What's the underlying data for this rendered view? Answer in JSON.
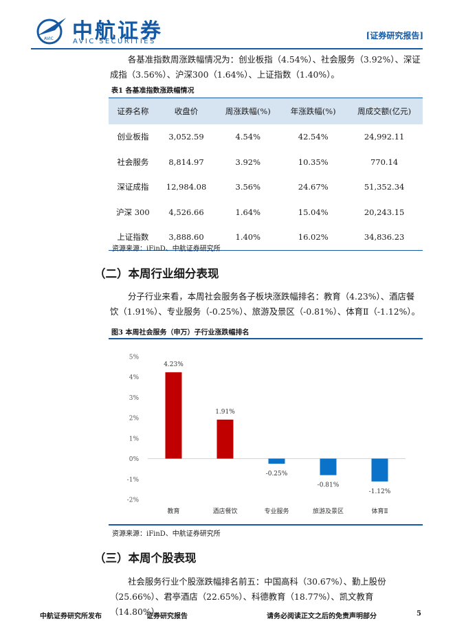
{
  "header": {
    "brand_cn": "中航证券",
    "brand_en": "AVIC SECURITIES",
    "logo_badge": "AVIC",
    "doc_tag": "[证券研究报告]"
  },
  "intro_paragraph": "各基准指数周涨跌幅情况为：创业板指（4.54%）、社会服务（3.92%）、深证成指（3.56%）、沪深300（1.64%）、上证指数（1.40%）。",
  "table1": {
    "caption": "表1  各基准指数涨跌幅情况",
    "headers": [
      "证券名称",
      "收盘价",
      "周涨跌幅(%)",
      "年涨跌幅(%)",
      "周成交额(亿元)"
    ],
    "rows": [
      [
        "创业板指",
        "3,052.59",
        "4.54%",
        "42.54%",
        "24,992.11"
      ],
      [
        "社会服务",
        "8,814.97",
        "3.92%",
        "10.35%",
        "770.14"
      ],
      [
        "深证成指",
        "12,984.08",
        "3.56%",
        "24.67%",
        "51,352.34"
      ],
      [
        "沪深 300",
        "4,526.66",
        "1.64%",
        "15.04%",
        "20,243.15"
      ],
      [
        "上证指数",
        "3,888.60",
        "1.40%",
        "16.02%",
        "34,836.23"
      ]
    ],
    "source": "资源来源：iFinD、中航证券研究所"
  },
  "section2": {
    "title": "（二）本周行业细分表现",
    "paragraph": "分子行业来看，本周社会服务各子板块涨跌幅排名：教育（4.23%）、酒店餐饮（1.91%）、专业服务（-0.25%）、旅游及景区（-0.81%）、体育Ⅱ（-1.12%）。"
  },
  "figure3": {
    "caption": "图3  本周社会服务（申万）子行业涨跌幅排名",
    "source": "资源来源：iFinD、中航证券研究所"
  },
  "chart_data": {
    "type": "bar",
    "categories": [
      "教育",
      "酒店餐饮",
      "专业服务",
      "旅游及景区",
      "体育Ⅱ"
    ],
    "values": [
      4.23,
      1.91,
      -0.25,
      -0.81,
      -1.12
    ],
    "data_labels": [
      "4.23%",
      "1.91%",
      "-0.25%",
      "-0.81%",
      "-1.12%"
    ],
    "ylim": [
      -2,
      5
    ],
    "yticks": [
      5,
      4,
      3,
      2,
      1,
      0,
      -1,
      -2
    ],
    "ytick_labels": [
      "5%",
      "4%",
      "3%",
      "2%",
      "1%",
      "0%",
      "-1%",
      "-2%"
    ],
    "positive_color": "#c00000",
    "negative_color": "#0b72c9",
    "grid": false,
    "title": "",
    "xlabel": "",
    "ylabel": ""
  },
  "section3": {
    "title": "（三）本周个股表现",
    "paragraph": "社会服务行业个股涨跌幅排名前五：中国高科（30.67%）、勤上股份（25.66%）、君亭酒店（22.65%）、科德教育（18.77%）、凯文教育（14.80%）。"
  },
  "footer": {
    "left": "中航证券研究所发布",
    "middle": "证券研究报告",
    "right": "请务必阅读正文之后的免责声明部分",
    "page_number": "5"
  }
}
